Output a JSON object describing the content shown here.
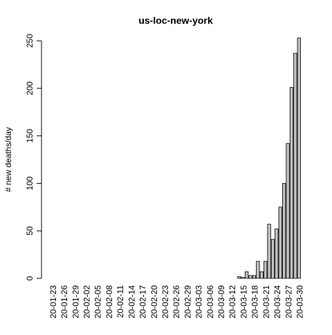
{
  "chart_data": {
    "type": "bar",
    "title": "us-loc-new-york",
    "ylabel": "# new deaths/day",
    "categories": [
      "20-01-23",
      null,
      null,
      "20-01-26",
      null,
      null,
      "20-01-29",
      null,
      null,
      "20-02-02",
      null,
      null,
      "20-02-05",
      null,
      null,
      "20-02-08",
      null,
      null,
      "20-02-11",
      null,
      null,
      "20-02-14",
      null,
      null,
      "20-02-17",
      null,
      null,
      "20-02-20",
      null,
      null,
      "20-02-23",
      null,
      null,
      "20-02-26",
      null,
      null,
      "20-02-29",
      null,
      null,
      "20-03-03",
      null,
      null,
      "20-03-06",
      null,
      null,
      "20-03-09",
      null,
      null,
      "20-03-12",
      null,
      null,
      "20-03-15",
      null,
      null,
      "20-03-18",
      null,
      null,
      "20-03-21",
      null,
      null,
      "20-03-24",
      null,
      null,
      "20-03-27",
      null,
      null,
      "20-03-30"
    ],
    "values": [
      0,
      0,
      0,
      0,
      0,
      0,
      0,
      0,
      0,
      0,
      0,
      0,
      0,
      0,
      0,
      0,
      0,
      0,
      0,
      0,
      0,
      0,
      0,
      0,
      0,
      0,
      0,
      0,
      0,
      0,
      0,
      0,
      0,
      0,
      0,
      0,
      0,
      0,
      0,
      0,
      0,
      0,
      0,
      0,
      0,
      0,
      0,
      0,
      0,
      0,
      2,
      1,
      7,
      3,
      3,
      18,
      7,
      18,
      57,
      41,
      52,
      75,
      100,
      142,
      201,
      237,
      253
    ],
    "color": "#bebebe",
    "ylim": [
      0,
      253
    ],
    "yticks": [
      0,
      50,
      100,
      150,
      200,
      250
    ]
  }
}
